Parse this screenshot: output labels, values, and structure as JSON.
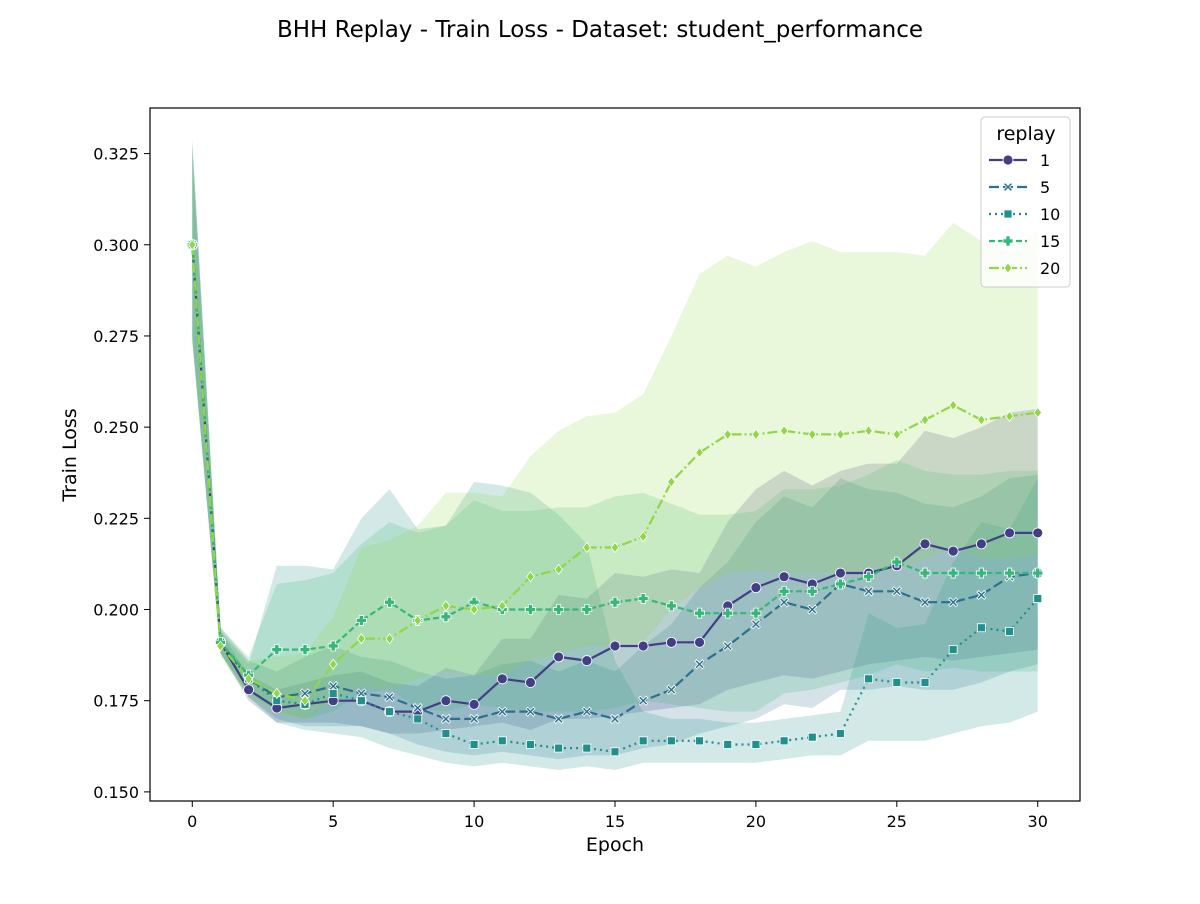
{
  "chart_data": {
    "type": "line",
    "title": "BHH Replay - Train Loss - Dataset: student_performance",
    "xlabel": "Epoch",
    "ylabel": "Train Loss",
    "xlim": [
      -1.5,
      31.5
    ],
    "ylim": [
      0.1475,
      0.3375
    ],
    "xticks": [
      0,
      5,
      10,
      15,
      20,
      25,
      30
    ],
    "yticks": [
      0.15,
      0.175,
      0.2,
      0.225,
      0.25,
      0.275,
      0.3,
      0.325
    ],
    "ytick_labels": [
      "0.150",
      "0.175",
      "0.200",
      "0.225",
      "0.250",
      "0.275",
      "0.300",
      "0.325"
    ],
    "grid": false,
    "legend": {
      "title": "replay",
      "placement": "top-right"
    },
    "x": [
      0,
      1,
      2,
      3,
      4,
      5,
      6,
      7,
      8,
      9,
      10,
      11,
      12,
      13,
      14,
      15,
      16,
      17,
      18,
      19,
      20,
      21,
      22,
      23,
      24,
      25,
      26,
      27,
      28,
      29,
      30
    ],
    "series": [
      {
        "name": "1",
        "color": "#433e85",
        "marker": "circle",
        "dash": "",
        "values": [
          0.3,
          0.191,
          0.178,
          0.173,
          0.174,
          0.175,
          0.175,
          0.172,
          0.172,
          0.175,
          0.174,
          0.181,
          0.18,
          0.187,
          0.186,
          0.19,
          0.19,
          0.191,
          0.191,
          0.201,
          0.206,
          0.209,
          0.207,
          0.21,
          0.21,
          0.212,
          0.218,
          0.216,
          0.218,
          0.221,
          0.221
        ],
        "lower": [
          0.275,
          0.188,
          0.175,
          0.169,
          0.169,
          0.169,
          0.168,
          0.166,
          0.166,
          0.167,
          0.168,
          0.169,
          0.167,
          0.17,
          0.17,
          0.171,
          0.172,
          0.173,
          0.174,
          0.178,
          0.18,
          0.182,
          0.181,
          0.183,
          0.185,
          0.186,
          0.187,
          0.186,
          0.187,
          0.188,
          0.189
        ],
        "upper": [
          0.325,
          0.194,
          0.182,
          0.178,
          0.18,
          0.182,
          0.183,
          0.18,
          0.179,
          0.184,
          0.182,
          0.192,
          0.192,
          0.204,
          0.203,
          0.21,
          0.209,
          0.211,
          0.21,
          0.224,
          0.233,
          0.238,
          0.234,
          0.238,
          0.24,
          0.24,
          0.249,
          0.247,
          0.25,
          0.254,
          0.255
        ]
      },
      {
        "name": "5",
        "color": "#2d708e",
        "marker": "x",
        "dash": "10 4",
        "values": [
          0.3,
          0.191,
          0.181,
          0.176,
          0.177,
          0.179,
          0.177,
          0.176,
          0.173,
          0.17,
          0.17,
          0.172,
          0.172,
          0.17,
          0.172,
          0.17,
          0.175,
          0.178,
          0.185,
          0.19,
          0.196,
          0.202,
          0.2,
          0.207,
          0.205,
          0.205,
          0.202,
          0.202,
          0.204,
          0.209,
          0.21
        ],
        "lower": [
          0.274,
          0.188,
          0.176,
          0.17,
          0.168,
          0.168,
          0.168,
          0.166,
          0.163,
          0.161,
          0.16,
          0.161,
          0.16,
          0.159,
          0.16,
          0.16,
          0.162,
          0.163,
          0.166,
          0.168,
          0.17,
          0.174,
          0.173,
          0.178,
          0.178,
          0.179,
          0.178,
          0.178,
          0.18,
          0.183,
          0.185
        ],
        "upper": [
          0.329,
          0.195,
          0.186,
          0.183,
          0.187,
          0.19,
          0.187,
          0.186,
          0.183,
          0.181,
          0.182,
          0.185,
          0.186,
          0.183,
          0.186,
          0.183,
          0.19,
          0.196,
          0.206,
          0.213,
          0.224,
          0.231,
          0.228,
          0.236,
          0.233,
          0.232,
          0.229,
          0.228,
          0.231,
          0.236,
          0.237
        ]
      },
      {
        "name": "10",
        "color": "#20908d",
        "marker": "square",
        "dash": "2 4",
        "values": [
          0.3,
          0.191,
          0.181,
          0.175,
          0.174,
          0.177,
          0.175,
          0.172,
          0.17,
          0.166,
          0.163,
          0.164,
          0.163,
          0.162,
          0.162,
          0.161,
          0.164,
          0.164,
          0.164,
          0.163,
          0.163,
          0.164,
          0.165,
          0.166,
          0.181,
          0.18,
          0.18,
          0.189,
          0.195,
          0.194,
          0.203
        ],
        "lower": [
          0.273,
          0.188,
          0.176,
          0.169,
          0.167,
          0.166,
          0.165,
          0.162,
          0.16,
          0.158,
          0.157,
          0.158,
          0.157,
          0.156,
          0.157,
          0.156,
          0.158,
          0.158,
          0.158,
          0.158,
          0.158,
          0.159,
          0.16,
          0.16,
          0.164,
          0.164,
          0.164,
          0.166,
          0.168,
          0.169,
          0.172
        ],
        "upper": [
          0.328,
          0.194,
          0.185,
          0.212,
          0.212,
          0.211,
          0.225,
          0.233,
          0.222,
          0.223,
          0.235,
          0.234,
          0.232,
          0.226,
          0.218,
          0.186,
          0.172,
          0.17,
          0.17,
          0.169,
          0.169,
          0.17,
          0.171,
          0.172,
          0.199,
          0.195,
          0.196,
          0.213,
          0.224,
          0.222,
          0.236
        ]
      },
      {
        "name": "15",
        "color": "#35b779",
        "marker": "plus",
        "dash": "6 3",
        "values": [
          0.3,
          0.191,
          0.182,
          0.189,
          0.189,
          0.19,
          0.197,
          0.202,
          0.197,
          0.198,
          0.202,
          0.2,
          0.2,
          0.2,
          0.2,
          0.202,
          0.203,
          0.201,
          0.199,
          0.199,
          0.199,
          0.205,
          0.205,
          0.207,
          0.209,
          0.213,
          0.21,
          0.21,
          0.21,
          0.21,
          0.21
        ],
        "lower": [
          0.274,
          0.188,
          0.177,
          0.172,
          0.17,
          0.172,
          0.177,
          0.178,
          0.173,
          0.172,
          0.174,
          0.173,
          0.172,
          0.172,
          0.172,
          0.173,
          0.175,
          0.174,
          0.173,
          0.172,
          0.172,
          0.177,
          0.178,
          0.18,
          0.182,
          0.185,
          0.183,
          0.184,
          0.183,
          0.183,
          0.183
        ],
        "upper": [
          0.327,
          0.195,
          0.187,
          0.207,
          0.208,
          0.21,
          0.218,
          0.224,
          0.221,
          0.223,
          0.23,
          0.227,
          0.227,
          0.228,
          0.228,
          0.231,
          0.232,
          0.229,
          0.226,
          0.226,
          0.227,
          0.233,
          0.233,
          0.234,
          0.237,
          0.241,
          0.238,
          0.237,
          0.237,
          0.238,
          0.238
        ]
      },
      {
        "name": "20",
        "color": "#8fd744",
        "marker": "diamond",
        "dash": "10 3 2 3",
        "values": [
          0.3,
          0.19,
          0.181,
          0.177,
          0.175,
          0.185,
          0.192,
          0.192,
          0.197,
          0.201,
          0.2,
          0.201,
          0.209,
          0.211,
          0.217,
          0.217,
          0.22,
          0.235,
          0.243,
          0.248,
          0.248,
          0.249,
          0.248,
          0.248,
          0.249,
          0.248,
          0.252,
          0.256,
          0.252,
          0.253,
          0.254
        ],
        "lower": [
          0.275,
          0.187,
          0.176,
          0.171,
          0.17,
          0.175,
          0.179,
          0.178,
          0.181,
          0.183,
          0.182,
          0.182,
          0.186,
          0.188,
          0.19,
          0.19,
          0.191,
          0.2,
          0.206,
          0.21,
          0.211,
          0.21,
          0.21,
          0.21,
          0.211,
          0.211,
          0.214,
          0.217,
          0.214,
          0.214,
          0.215
        ],
        "upper": [
          0.326,
          0.194,
          0.186,
          0.187,
          0.188,
          0.198,
          0.217,
          0.219,
          0.223,
          0.232,
          0.232,
          0.231,
          0.242,
          0.249,
          0.253,
          0.254,
          0.259,
          0.275,
          0.292,
          0.297,
          0.294,
          0.298,
          0.301,
          0.298,
          0.298,
          0.298,
          0.297,
          0.306,
          0.301,
          0.298,
          0.304
        ]
      }
    ]
  }
}
